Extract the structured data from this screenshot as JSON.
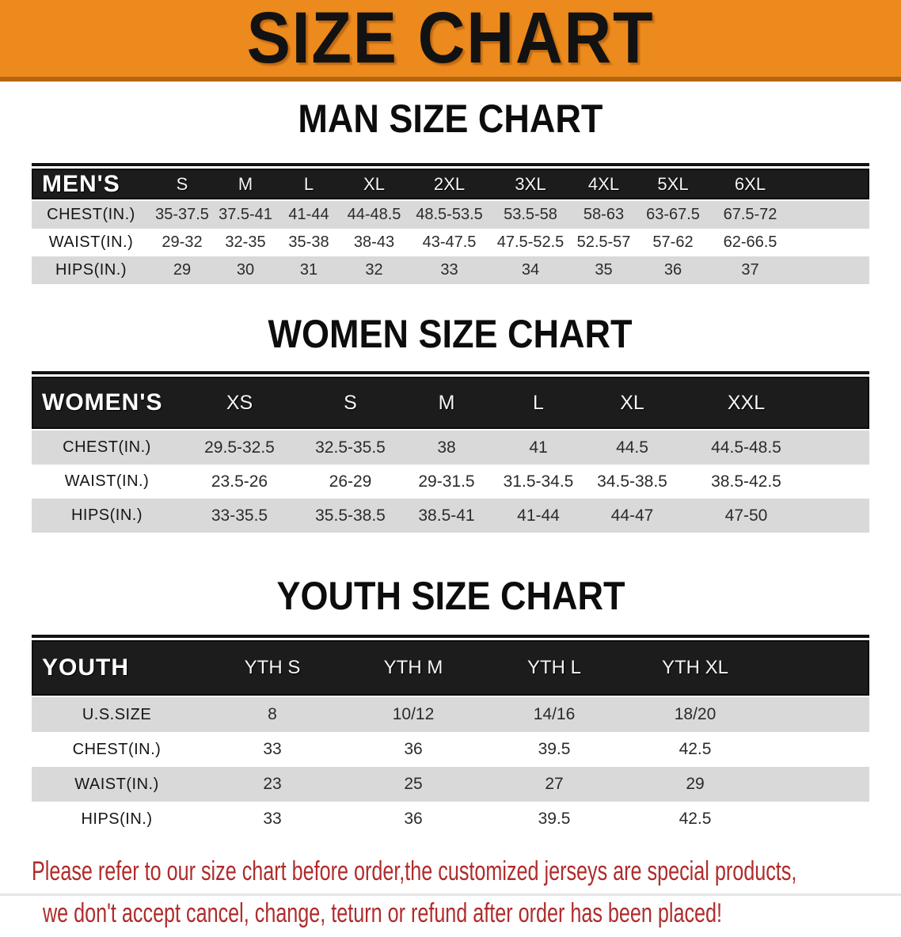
{
  "banner": {
    "title": "SIZE CHART"
  },
  "colors": {
    "banner_orange": "#EC8A1D",
    "banner_edge": "#B4650E",
    "header_bar_black": "#1C1C1C",
    "row_gray": "#D9D9D9",
    "note_red": "#B02B2B"
  },
  "men": {
    "heading": "MAN SIZE CHART",
    "group_label": "MEN'S",
    "sizes": [
      "S",
      "M",
      "L",
      "XL",
      "2XL",
      "3XL",
      "4XL",
      "5XL",
      "6XL"
    ],
    "rows": [
      {
        "label": "CHEST(IN.)",
        "values": [
          "35-37.5",
          "37.5-41",
          "41-44",
          "44-48.5",
          "48.5-53.5",
          "53.5-58",
          "58-63",
          "63-67.5",
          "67.5-72"
        ]
      },
      {
        "label": "WAIST(IN.)",
        "values": [
          "29-32",
          "32-35",
          "35-38",
          "38-43",
          "43-47.5",
          "47.5-52.5",
          "52.5-57",
          "57-62",
          "62-66.5"
        ]
      },
      {
        "label": "HIPS(IN.)",
        "values": [
          "29",
          "30",
          "31",
          "32",
          "33",
          "34",
          "35",
          "36",
          "37"
        ]
      }
    ]
  },
  "women": {
    "heading": "WOMEN SIZE CHART",
    "group_label": "WOMEN'S",
    "sizes": [
      "XS",
      "S",
      "M",
      "L",
      "XL",
      "XXL"
    ],
    "rows": [
      {
        "label": "CHEST(IN.)",
        "values": [
          "29.5-32.5",
          "32.5-35.5",
          "38",
          "41",
          "44.5",
          "44.5-48.5"
        ]
      },
      {
        "label": "WAIST(IN.)",
        "values": [
          "23.5-26",
          "26-29",
          "29-31.5",
          "31.5-34.5",
          "34.5-38.5",
          "38.5-42.5"
        ]
      },
      {
        "label": "HIPS(IN.)",
        "values": [
          "33-35.5",
          "35.5-38.5",
          "38.5-41",
          "41-44",
          "44-47",
          "47-50"
        ]
      }
    ]
  },
  "youth": {
    "heading": "YOUTH SIZE CHART",
    "group_label": "YOUTH",
    "sizes": [
      "YTH S",
      "YTH M",
      "YTH L",
      "YTH XL"
    ],
    "rows": [
      {
        "label": "U.S.SIZE",
        "values": [
          "8",
          "10/12",
          "14/16",
          "18/20"
        ]
      },
      {
        "label": "CHEST(IN.)",
        "values": [
          "33",
          "36",
          "39.5",
          "42.5"
        ]
      },
      {
        "label": "WAIST(IN.)",
        "values": [
          "23",
          "25",
          "27",
          "29"
        ]
      },
      {
        "label": "HIPS(IN.)",
        "values": [
          "33",
          "36",
          "39.5",
          "42.5"
        ]
      }
    ]
  },
  "note": {
    "line1": "Please refer to our size chart before order,the customized jerseys are special products,",
    "line2": "we don't accept cancel, change, teturn or refund after order has been placed!"
  }
}
